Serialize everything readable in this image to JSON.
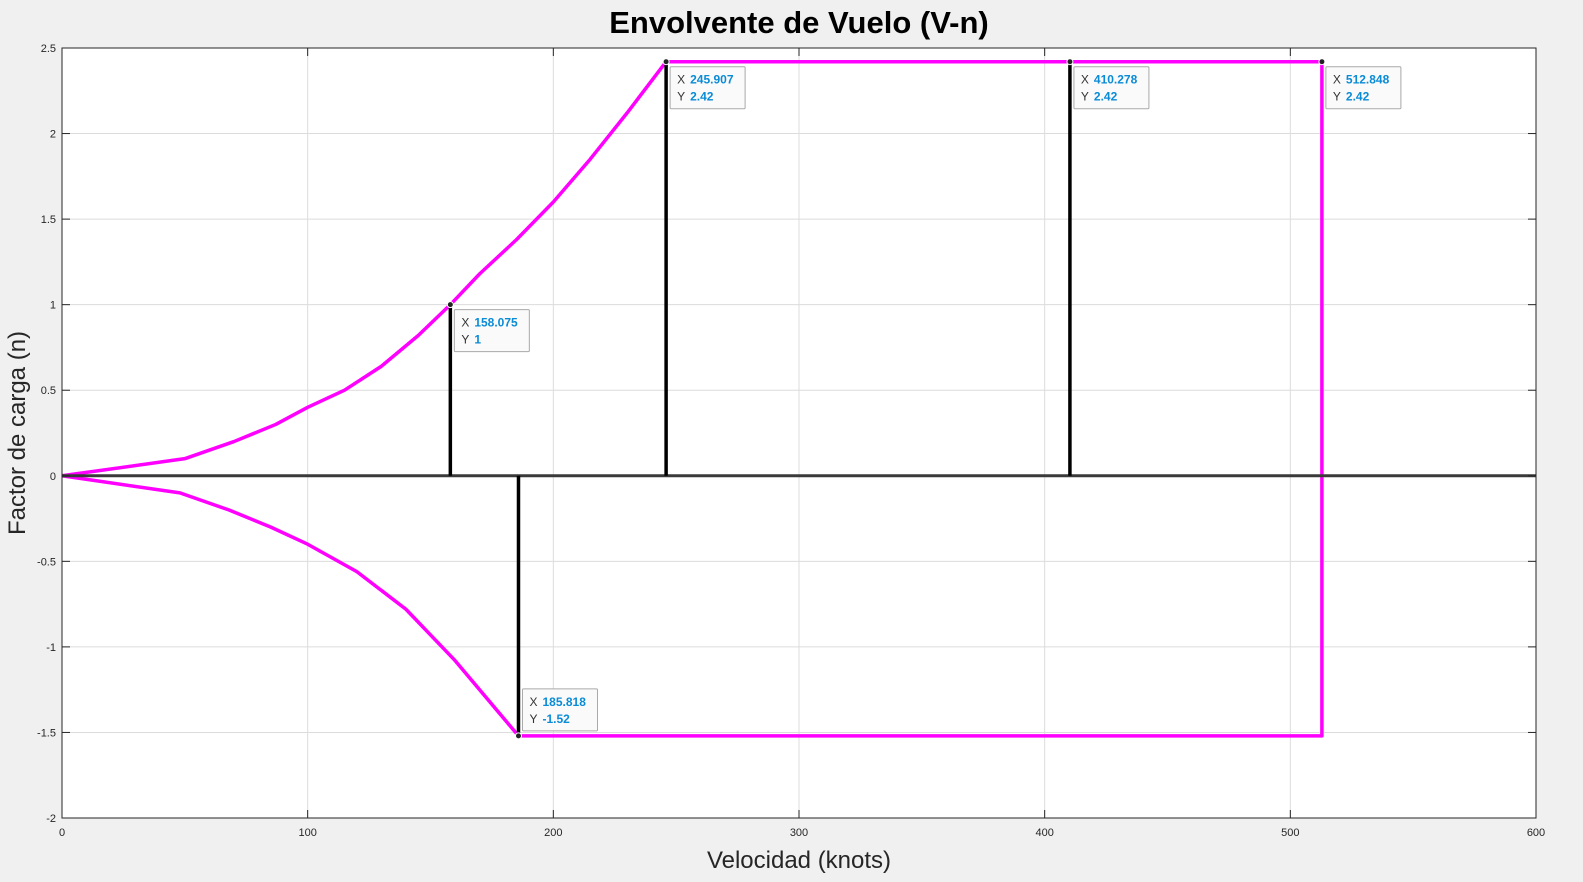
{
  "chart_data": {
    "type": "line",
    "title": "Envolvente de Vuelo (V-n)",
    "xlabel": "Velocidad (knots)",
    "ylabel": "Factor de carga (n)",
    "xlim": [
      0,
      600
    ],
    "ylim": [
      -2,
      2.5
    ],
    "xticks": [
      0,
      100,
      200,
      300,
      400,
      500,
      600
    ],
    "xtick_labels": [
      "0",
      "100",
      "200",
      "300",
      "400",
      "500",
      "600"
    ],
    "yticks": [
      -2,
      -1.5,
      -1,
      -0.5,
      0,
      0.5,
      1,
      1.5,
      2,
      2.5
    ],
    "ytick_labels": [
      "-2",
      "-1.5",
      "-1",
      "-0.5",
      "0",
      "0.5",
      "1",
      "1.5",
      "2",
      "2.5"
    ],
    "grid": true,
    "series": [
      {
        "color": "#ff00ff",
        "x": [
          0,
          50,
          70,
          87,
          100,
          115,
          130,
          145,
          158.075,
          170,
          185,
          200,
          215,
          230,
          245.907,
          410.278,
          512.848,
          512.848,
          185.818
        ],
        "y": [
          0,
          0.1,
          0.2,
          0.3,
          0.4,
          0.5,
          0.64,
          0.82,
          1,
          1.18,
          1.38,
          1.6,
          1.85,
          2.12,
          2.42,
          2.42,
          2.42,
          -1.52,
          -1.52
        ]
      },
      {
        "color": "#ff00ff",
        "x": [
          0,
          48,
          68,
          85,
          100,
          120,
          140,
          160,
          185.818
        ],
        "y": [
          0,
          -0.1,
          -0.2,
          -0.3,
          -0.4,
          -0.56,
          -0.78,
          -1.08,
          -1.52
        ]
      },
      {
        "color": "#3a3a3a",
        "x": [
          0,
          600
        ],
        "y": [
          0,
          0
        ]
      },
      {
        "color": "#000000",
        "x": [
          158.075,
          158.075
        ],
        "y": [
          0,
          1
        ]
      },
      {
        "color": "#000000",
        "x": [
          245.907,
          245.907
        ],
        "y": [
          0,
          2.42
        ]
      },
      {
        "color": "#000000",
        "x": [
          410.278,
          410.278
        ],
        "y": [
          0,
          2.42
        ]
      },
      {
        "color": "#000000",
        "x": [
          185.818,
          185.818
        ],
        "y": [
          0,
          -1.52
        ]
      }
    ],
    "annotations": [
      {
        "x": 158.075,
        "y": 1,
        "x_text": "158.075",
        "y_text": "1"
      },
      {
        "x": 245.907,
        "y": 2.42,
        "x_text": "245.907",
        "y_text": "2.42"
      },
      {
        "x": 410.278,
        "y": 2.42,
        "x_text": "410.278",
        "y_text": "2.42"
      },
      {
        "x": 512.848,
        "y": 2.42,
        "x_text": "512.848",
        "y_text": "2.42"
      },
      {
        "x": 185.818,
        "y": -1.52,
        "x_text": "185.818",
        "y_text": "-1.52"
      }
    ],
    "datatip_key_x": "X",
    "datatip_key_y": "Y",
    "datatip_value_color": "#0a8bd6"
  }
}
